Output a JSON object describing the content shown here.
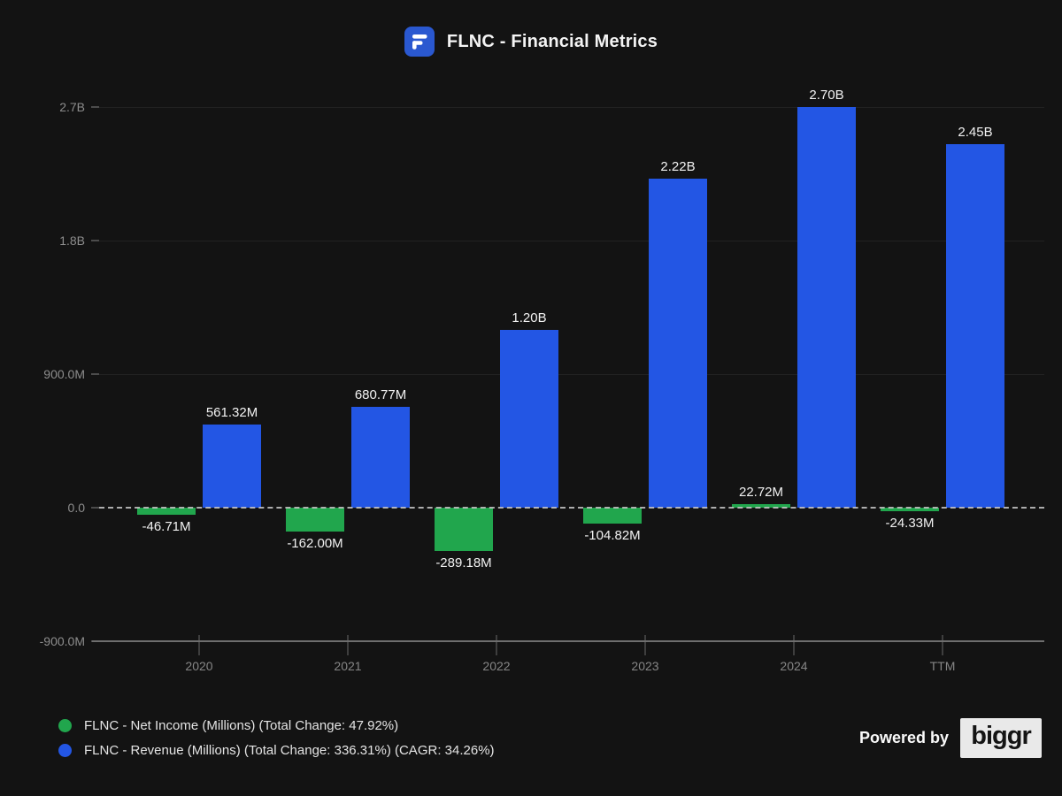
{
  "header": {
    "title": "FLNC - Financial Metrics",
    "logo_color": "#2a58d0",
    "logo_glyph_color": "#ffffff"
  },
  "chart_data": {
    "type": "bar",
    "title": "FLNC - Financial Metrics",
    "categories": [
      "2020",
      "2021",
      "2022",
      "2023",
      "2024",
      "TTM"
    ],
    "series": [
      {
        "name": "FLNC - Net Income (Millions)",
        "color": "#21a64d",
        "values_millions": [
          -46.71,
          -162.0,
          -289.18,
          -104.82,
          22.72,
          -24.33
        ],
        "labels": [
          "-46.71M",
          "-162.00M",
          "-289.18M",
          "-104.82M",
          "22.72M",
          "-24.33M"
        ]
      },
      {
        "name": "FLNC - Revenue (Millions)",
        "color": "#2356e4",
        "values_millions": [
          561.32,
          680.77,
          1200,
          2220,
          2700,
          2450
        ],
        "labels": [
          "561.32M",
          "680.77M",
          "1.20B",
          "2.22B",
          "2.70B",
          "2.45B"
        ]
      }
    ],
    "y_axis": {
      "ticks_millions": [
        2700,
        1800,
        900,
        0,
        -900
      ],
      "tick_labels": [
        "2.7B",
        "1.8B",
        "900.0M",
        "0.0",
        "-900.0M"
      ],
      "range_millions": [
        -900,
        2700
      ],
      "zero_line_style": "dashed",
      "grid": true
    },
    "legend_position": "bottom-left",
    "background": "#131313"
  },
  "legend": {
    "items": [
      {
        "color": "#21a64d",
        "label": "FLNC - Net Income (Millions) (Total Change: 47.92%)"
      },
      {
        "color": "#2356e4",
        "label": "FLNC - Revenue (Millions) (Total Change: 336.31%) (CAGR: 34.26%)"
      }
    ]
  },
  "footer": {
    "powered_by_label": "Powered by",
    "brand_name": "biggr"
  }
}
